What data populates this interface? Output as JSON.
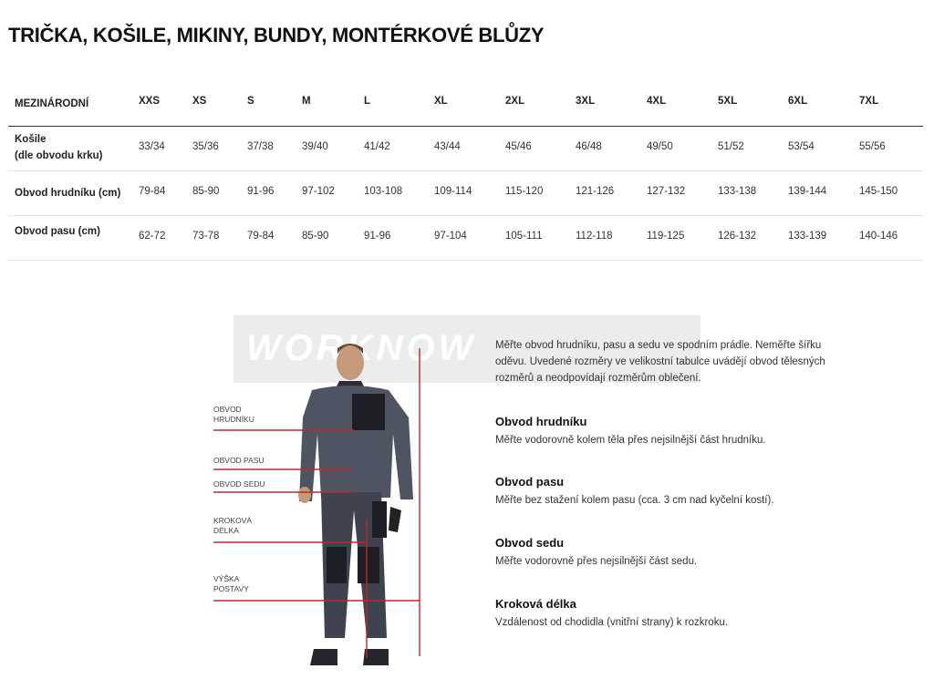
{
  "title": "TRIČKA, KOŠILE, MIKINY, BUNDY, MONTÉRKOVÉ BLŮZY",
  "table": {
    "headers": [
      "MEZINÁRODNÍ",
      "XXS",
      "XS",
      "S",
      "M",
      "L",
      "XL",
      "2XL",
      "3XL",
      "4XL",
      "5XL",
      "6XL",
      "7XL"
    ],
    "rows": [
      {
        "label": [
          "Košile",
          "(dle obvodu krku)"
        ],
        "values": [
          "33/34",
          "35/36",
          "37/38",
          "39/40",
          "41/42",
          "43/44",
          "45/46",
          "46/48",
          "49/50",
          "51/52",
          "53/54",
          "55/56"
        ]
      },
      {
        "label": [
          "Obvod hrudníku (cm)"
        ],
        "values": [
          "79-84",
          "85-90",
          "91-96",
          "97-102",
          "103-108",
          "109-114",
          "115-120",
          "121-126",
          "127-132",
          "133-138",
          "139-144",
          "145-150"
        ]
      },
      {
        "label": [
          "Obvod pasu (cm)"
        ],
        "values": [
          "62-72",
          "73-78",
          "79-84",
          "85-90",
          "91-96",
          "97-104",
          "105-111",
          "112-118",
          "119-125",
          "126-132",
          "133-139",
          "140-146"
        ]
      }
    ]
  },
  "watermark": "WORKNOW",
  "figure_labels": [
    [
      "OBVOD",
      "HRUDNÍKU"
    ],
    [
      "OBVOD PASU"
    ],
    [
      "OBVOD SEDU"
    ],
    [
      "KROKOVÁ",
      "DÉLKA"
    ],
    [
      "VÝŠKA",
      "POSTAVY"
    ]
  ],
  "intro": "Měřte obvod hrudníku, pasu a sedu ve spodním prádle. Neměřte šířku oděvu. Uvedené rozměry ve velikostní tabulce uvádějí obvod tělesných rozměrů a neodpovídají rozměrům oblečení.",
  "sections": [
    {
      "title": "Obvod hrudníku",
      "text": "Měřte vodorovně kolem těla přes nejsilnější část hrudníku."
    },
    {
      "title": "Obvod pasu",
      "text": "Měřte bez stažení kolem pasu (cca. 3 cm nad kyčelní kostí)."
    },
    {
      "title": "Obvod sedu",
      "text": "Měřte vodorovně přes nejsilnější část sedu."
    },
    {
      "title": "Kroková délka",
      "text": "Vzdálenost od chodidla (vnitřní strany) k rozkroku."
    }
  ],
  "colors": {
    "measure_line": "#c0262d"
  }
}
